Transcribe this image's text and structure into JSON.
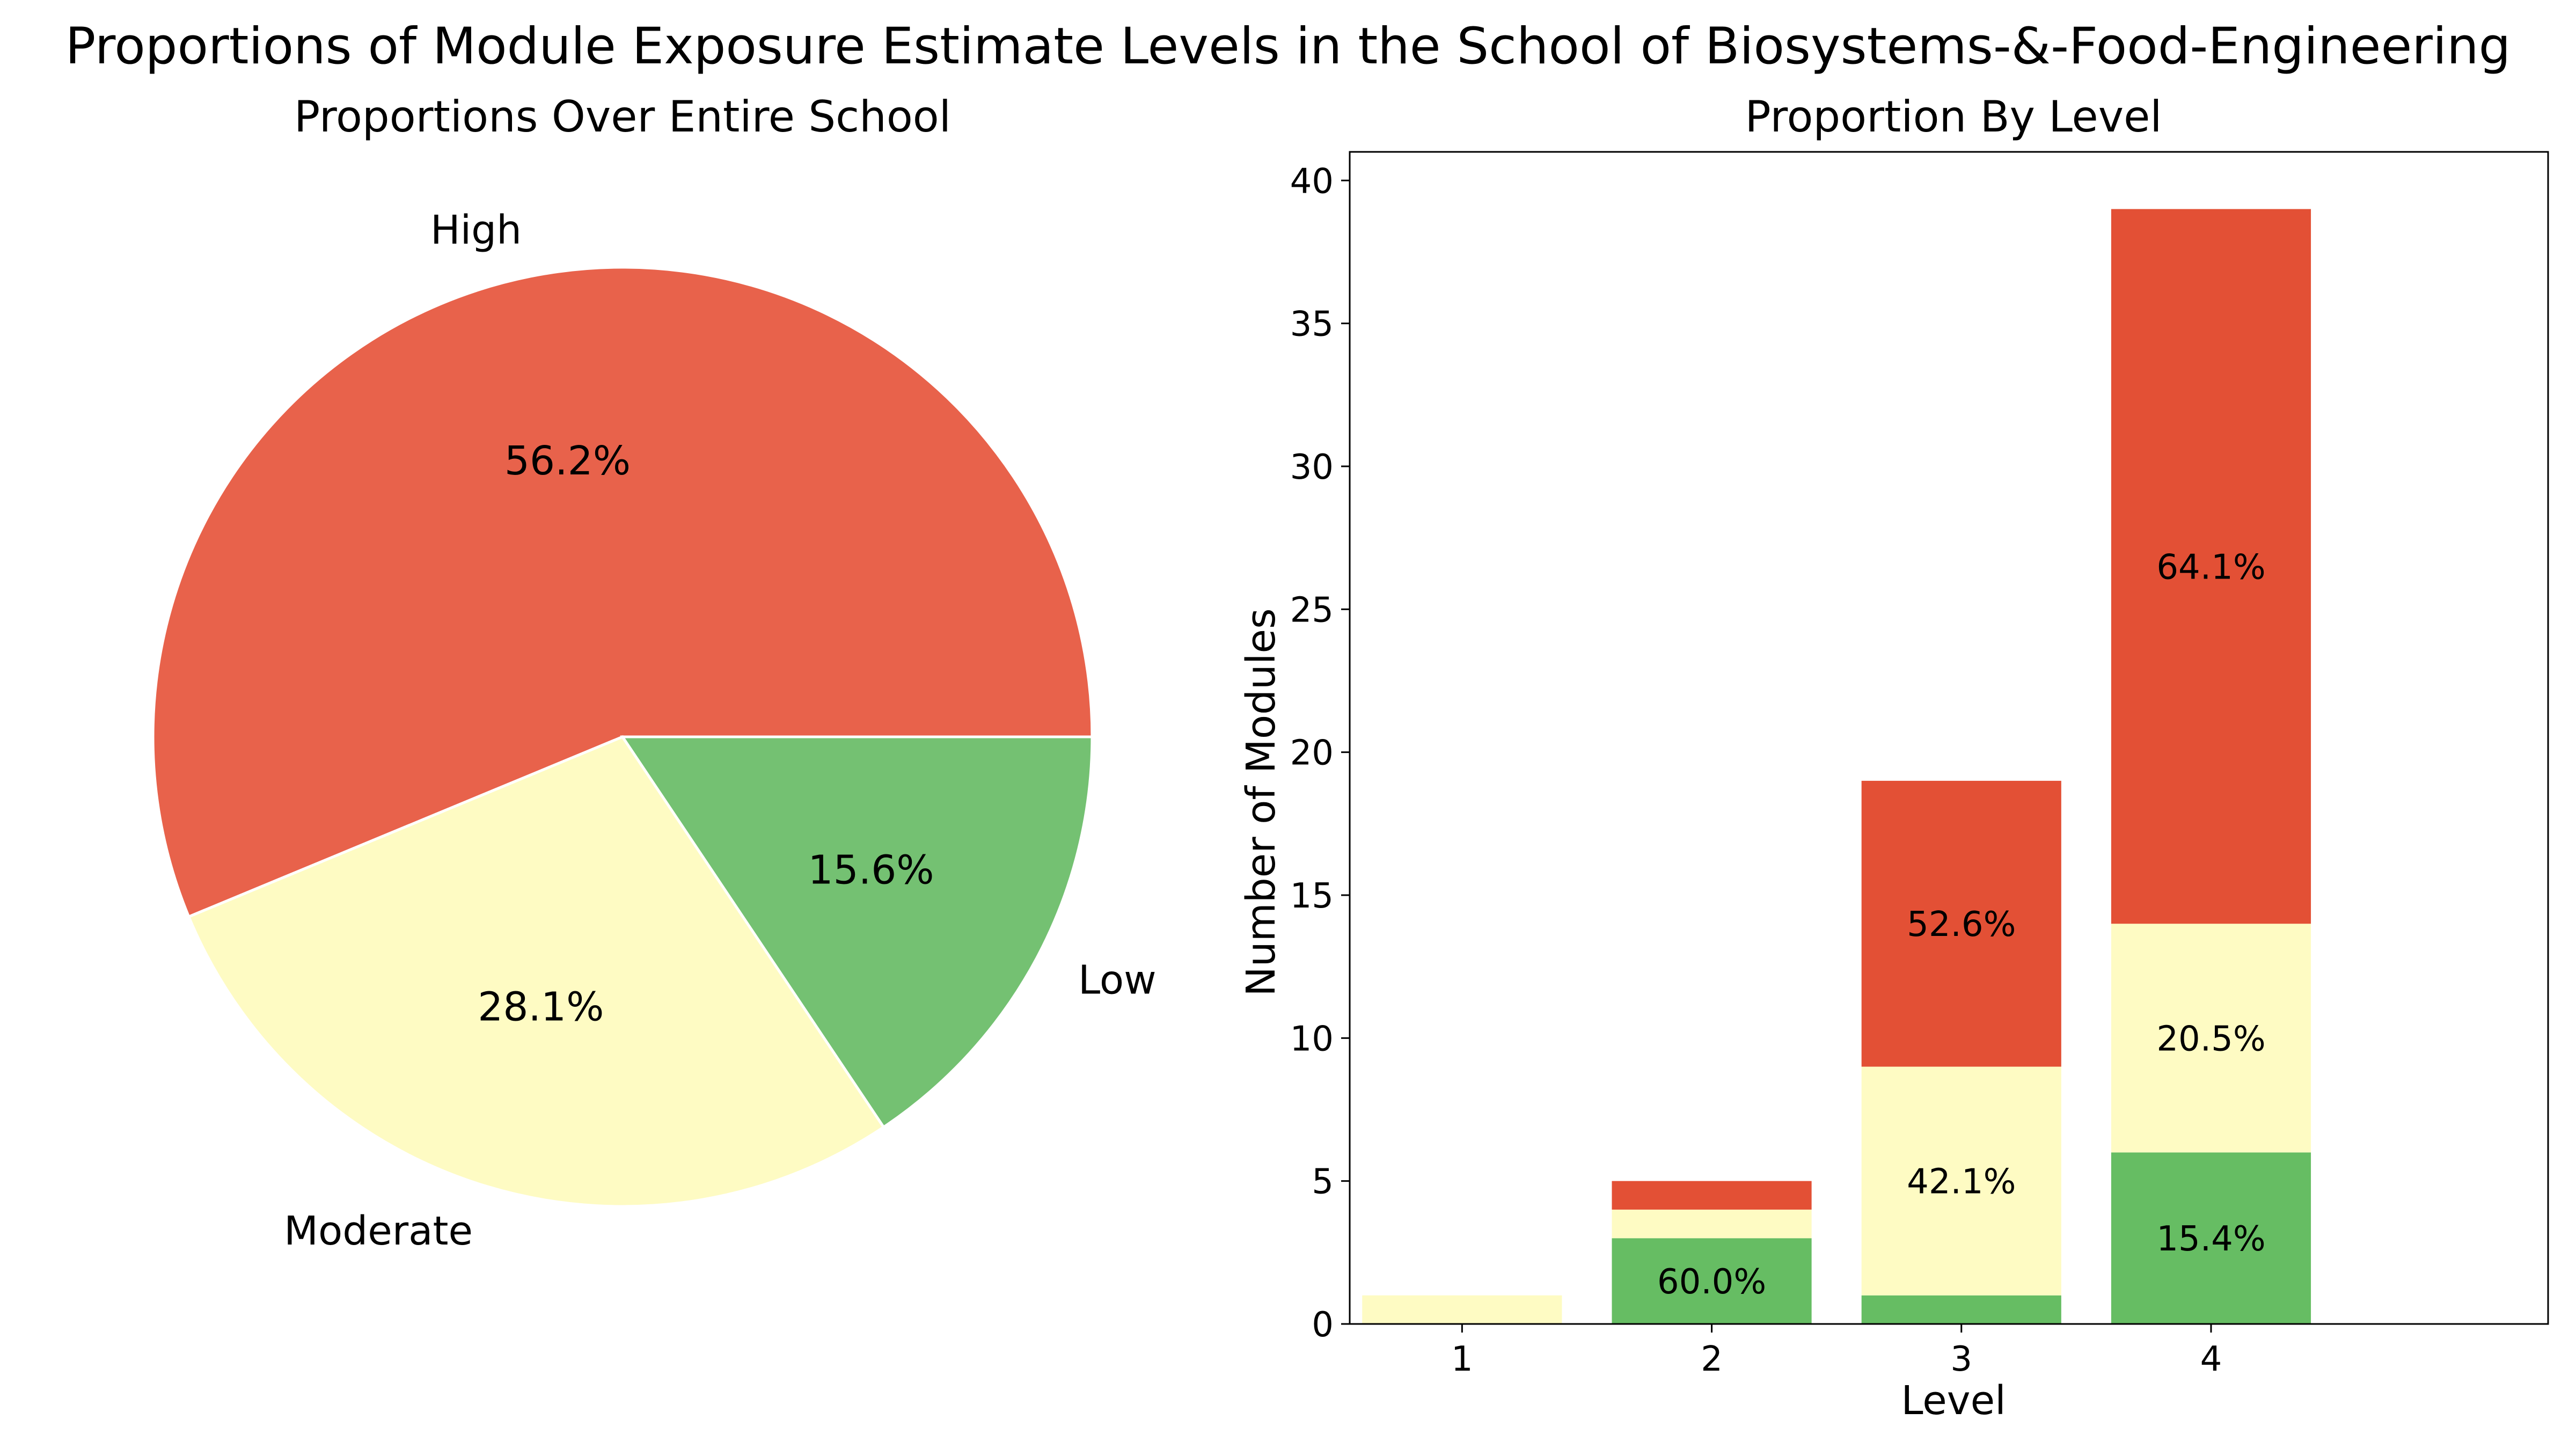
{
  "figure": {
    "suptitle": "Proportions of Module Exposure Estimate Levels in the School of Biosystems-&-Food-Engineering"
  },
  "colors": {
    "high": "#e8624b",
    "moderate": "#fefbc3",
    "low": "#74c172",
    "high_bar": "#e35035",
    "low_bar": "#66bd63",
    "edge": "#ffffff"
  },
  "chart_data": [
    {
      "type": "pie",
      "title": "Proportions Over Entire School",
      "labels": [
        "High",
        "Moderate",
        "Low"
      ],
      "values": [
        56.2,
        28.1,
        15.6
      ],
      "pct_labels": [
        "56.2%",
        "28.1%",
        "15.6%"
      ],
      "start_angle_deg": 0,
      "direction": "counterclockwise"
    },
    {
      "type": "bar",
      "stacked": true,
      "title": "Proportion By Level",
      "xlabel": "Level",
      "ylabel": "Number of Modules",
      "categories": [
        "1",
        "2",
        "3",
        "4"
      ],
      "series": [
        {
          "key": "low",
          "values": [
            0,
            3,
            1,
            6
          ]
        },
        {
          "key": "moderate",
          "values": [
            1,
            1,
            8,
            8
          ]
        },
        {
          "key": "high",
          "values": [
            0,
            1,
            10,
            25
          ]
        }
      ],
      "annotations": [
        {
          "category": "2",
          "y": 1.5,
          "text": "60.0%"
        },
        {
          "category": "3",
          "y": 5,
          "text": "42.1%"
        },
        {
          "category": "3",
          "y": 14,
          "text": "52.6%"
        },
        {
          "category": "4",
          "y": 3,
          "text": "15.4%"
        },
        {
          "category": "4",
          "y": 10,
          "text": "20.5%"
        },
        {
          "category": "4",
          "y": 26.5,
          "text": "64.1%"
        }
      ],
      "ylim": [
        0,
        41
      ],
      "yticks": [
        0,
        5,
        10,
        15,
        20,
        25,
        30,
        35,
        40
      ],
      "grid": false
    }
  ]
}
